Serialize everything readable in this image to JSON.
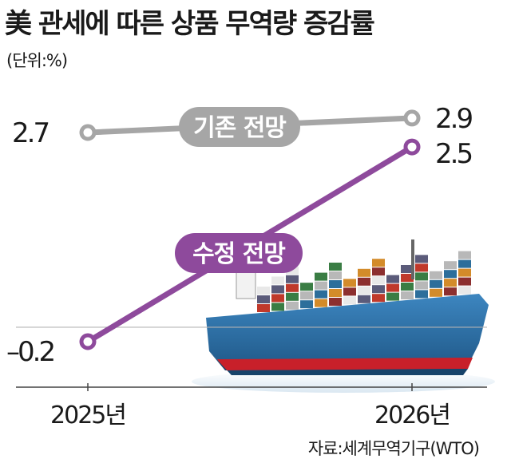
{
  "title": "美 관세에 따른 상품 무역량 증감률",
  "unit_label": "(단위:%)",
  "source": "자료:세계무역기구(WTO)",
  "colors": {
    "baseline_series": "#a6a6a6",
    "revised_series": "#8e4a9c",
    "ship_hull": "#2b6fa3",
    "ship_waterline": "#c8202a"
  },
  "chart_data": {
    "type": "line",
    "categories": [
      "2025년",
      "2026년"
    ],
    "ylim": [
      -0.6,
      3.2
    ],
    "grid": false,
    "series": [
      {
        "name": "기존 전망",
        "values": [
          2.7,
          2.9
        ],
        "value_labels": [
          "2.7",
          "2.9"
        ]
      },
      {
        "name": "수정 전망",
        "values": [
          -0.2,
          2.5
        ],
        "value_labels": [
          "–0.2",
          "2.5"
        ]
      }
    ]
  }
}
